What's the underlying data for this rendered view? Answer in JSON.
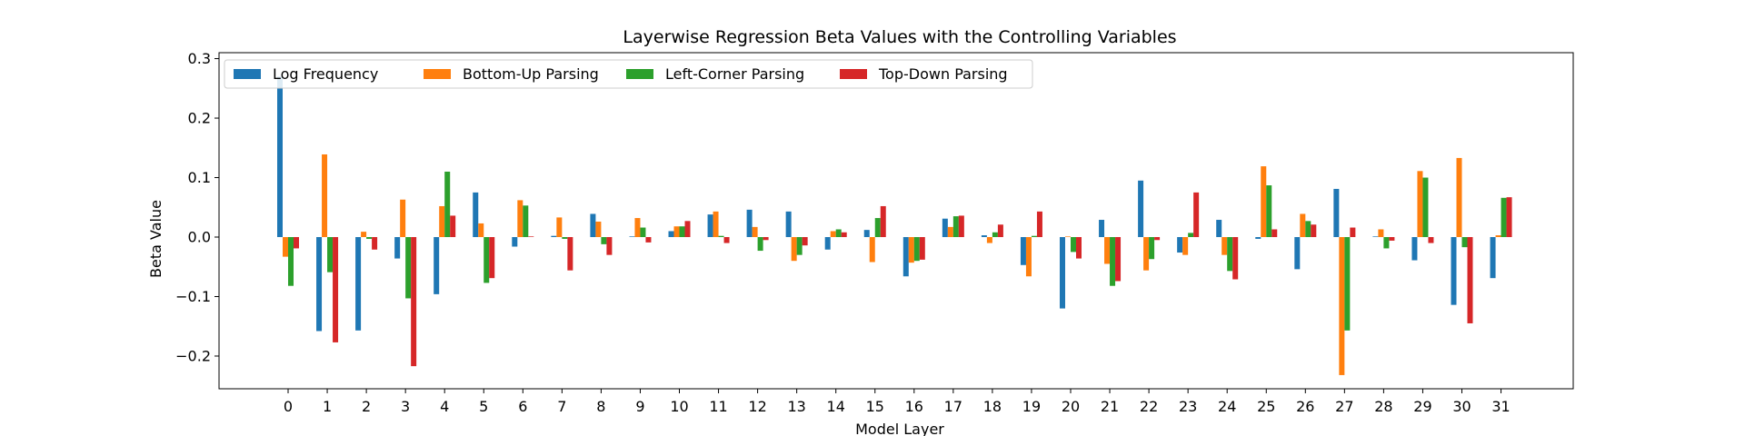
{
  "chart_data": {
    "type": "bar",
    "title": "Layerwise Regression Beta Values with the Controlling Variables",
    "xlabel": "Model Layer",
    "ylabel": "Beta Value",
    "ylim": [
      -0.255,
      0.31
    ],
    "yticks": [
      -0.2,
      -0.1,
      0.0,
      0.1,
      0.2,
      0.3
    ],
    "ytick_labels": [
      "−0.2",
      "−0.1",
      "0.0",
      "0.1",
      "0.2",
      "0.3"
    ],
    "grid": false,
    "legend_position": "top-left",
    "categories": [
      "0",
      "1",
      "2",
      "3",
      "4",
      "5",
      "6",
      "7",
      "8",
      "9",
      "10",
      "11",
      "12",
      "13",
      "14",
      "15",
      "16",
      "17",
      "18",
      "19",
      "20",
      "21",
      "22",
      "23",
      "24",
      "25",
      "26",
      "27",
      "28",
      "29",
      "30",
      "31"
    ],
    "series": [
      {
        "name": "Log Frequency",
        "color": "#1f77b4",
        "values": [
          0.27,
          -0.158,
          -0.157,
          -0.036,
          -0.096,
          0.075,
          -0.016,
          0.002,
          0.039,
          0.001,
          0.01,
          0.038,
          0.046,
          0.043,
          -0.021,
          0.012,
          -0.066,
          0.031,
          0.003,
          -0.047,
          -0.12,
          0.029,
          0.095,
          -0.026,
          0.029,
          -0.003,
          -0.054,
          0.081,
          0.001,
          -0.039,
          -0.114,
          -0.069
        ]
      },
      {
        "name": "Bottom-Up Parsing",
        "color": "#ff7f0e",
        "values": [
          -0.033,
          0.139,
          0.009,
          0.063,
          0.052,
          0.023,
          0.062,
          0.033,
          0.026,
          0.032,
          0.018,
          0.043,
          0.017,
          -0.04,
          0.01,
          -0.042,
          -0.043,
          0.017,
          -0.01,
          -0.066,
          0.001,
          -0.045,
          -0.056,
          -0.03,
          -0.03,
          0.119,
          0.039,
          -0.232,
          0.013,
          0.111,
          0.133,
          0.003
        ]
      },
      {
        "name": "Left-Corner Parsing",
        "color": "#2ca02c",
        "values": [
          -0.082,
          -0.059,
          -0.003,
          -0.103,
          0.11,
          -0.077,
          0.053,
          -0.003,
          -0.012,
          0.016,
          0.018,
          0.002,
          -0.023,
          -0.03,
          0.013,
          0.032,
          -0.04,
          0.035,
          0.008,
          0.002,
          -0.025,
          -0.082,
          -0.037,
          0.007,
          -0.057,
          0.087,
          0.027,
          -0.157,
          -0.019,
          0.1,
          -0.017,
          0.066
        ]
      },
      {
        "name": "Top-Down Parsing",
        "color": "#d62728",
        "values": [
          -0.019,
          -0.177,
          -0.021,
          -0.217,
          0.036,
          -0.069,
          0.001,
          -0.056,
          -0.03,
          -0.009,
          0.027,
          -0.01,
          -0.005,
          -0.014,
          0.008,
          0.052,
          -0.038,
          0.036,
          0.021,
          0.043,
          -0.036,
          -0.074,
          -0.005,
          0.075,
          -0.071,
          0.013,
          0.021,
          0.016,
          -0.006,
          -0.01,
          -0.145,
          0.067
        ]
      }
    ]
  }
}
